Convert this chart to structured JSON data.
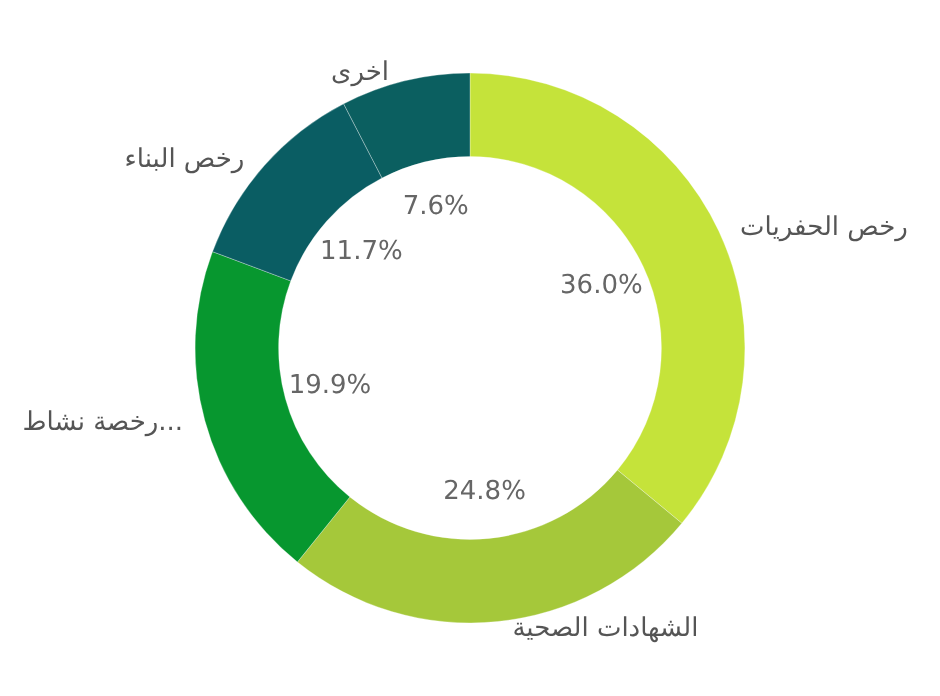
{
  "chart_data": {
    "type": "donut",
    "categories": [
      "رخص الحفريات",
      "الشهادات الصحية",
      "رخصة نشاط...",
      "رخص البناء",
      "اخرى"
    ],
    "values": [
      36.0,
      24.8,
      19.9,
      11.7,
      7.6
    ],
    "colors": [
      "#c5e33a",
      "#a5c83a",
      "#07972f",
      "#0a5d63",
      "#0b5f60"
    ],
    "value_labels": [
      "36.0%",
      "24.8%",
      "19.9%",
      "11.7%",
      "7.6%"
    ],
    "legend": false
  }
}
